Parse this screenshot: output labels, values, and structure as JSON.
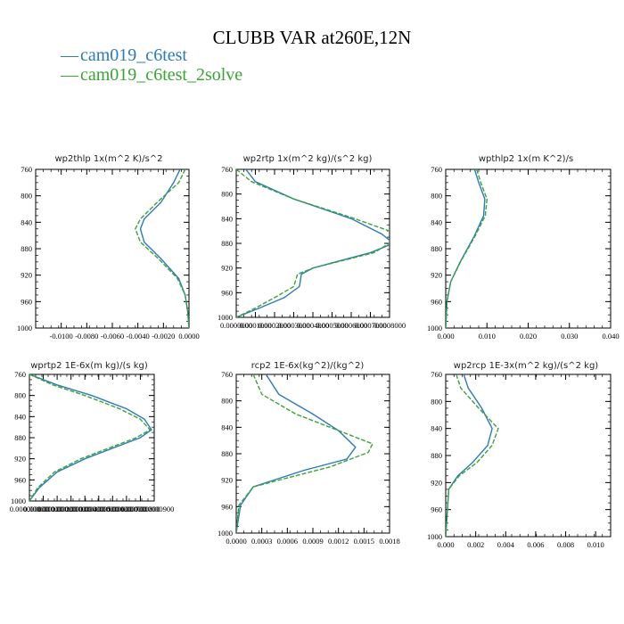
{
  "colors": {
    "series_1": "#2b7bba",
    "series_2": "#3aa435",
    "axis": "#000000"
  },
  "title": "CLUBB VAR at260E,12N",
  "legend": [
    {
      "symbol": "—",
      "label": "cam019_c6test",
      "color": "#2b7bba",
      "style": "solid"
    },
    {
      "symbol": "—",
      "label": "cam019_c6test_2solve",
      "color": "#3aa435",
      "style": "dashed"
    }
  ],
  "chart_data": [
    {
      "type": "line",
      "title": "wp2thlp  1x(m^2 K)/s^2",
      "xlim": [
        -0.012,
        0.0
      ],
      "ylim": [
        760,
        1000
      ],
      "y_inverted": true,
      "xticks": [
        -0.01,
        -0.008,
        -0.006,
        -0.004,
        -0.002,
        0.0
      ],
      "xtick_labels": [
        "-0.0100",
        "-0.0080",
        "-0.0060",
        "-0.0040",
        "-0.0020",
        "0.0000"
      ],
      "yticks": [
        760,
        800,
        840,
        880,
        920,
        960,
        1000
      ],
      "ytick_labels": [
        "760",
        "800",
        "840",
        "880",
        "920",
        "960",
        "1000"
      ],
      "series": [
        {
          "name": "cam019_c6test",
          "style": "solid",
          "points": [
            [
              -0.0007,
              760
            ],
            [
              -0.0012,
              780
            ],
            [
              -0.0022,
              810
            ],
            [
              -0.0035,
              835
            ],
            [
              -0.0038,
              850
            ],
            [
              -0.0035,
              870
            ],
            [
              -0.0022,
              895
            ],
            [
              -0.0008,
              925
            ],
            [
              -0.0003,
              950
            ],
            [
              -0.0001,
              975
            ],
            [
              0.0,
              1000
            ]
          ]
        },
        {
          "name": "cam019_c6test_2solve",
          "style": "dashed",
          "points": [
            [
              -0.0003,
              760
            ],
            [
              -0.0008,
              780
            ],
            [
              -0.0025,
              810
            ],
            [
              -0.0038,
              835
            ],
            [
              -0.0042,
              850
            ],
            [
              -0.0038,
              870
            ],
            [
              -0.0024,
              895
            ],
            [
              -0.0009,
              925
            ],
            [
              -0.0003,
              950
            ],
            [
              -0.0001,
              975
            ],
            [
              0.0,
              1000
            ]
          ]
        }
      ]
    },
    {
      "type": "line",
      "title": "wp2rtp  1x(m^2 kg)/(s^2 kg)",
      "xlim": [
        0.0,
        0.0008
      ],
      "ylim": [
        760,
        1000
      ],
      "y_inverted": true,
      "xticks": [
        0.0,
        0.0001,
        0.0002,
        0.0003,
        0.0004,
        0.0005,
        0.0006,
        0.0007,
        0.0008
      ],
      "xtick_labels": [
        "0.0000000",
        "0.0001000",
        "0.0002000",
        "0.0003000",
        "0.0004000",
        "0.0005000",
        "0.0006000",
        "0.0007000",
        "0.0008000"
      ],
      "yticks": [
        760,
        800,
        840,
        880,
        920,
        960,
        1000
      ],
      "ytick_labels": [
        "760",
        "800",
        "840",
        "880",
        "920",
        "960",
        "1000"
      ],
      "series": [
        {
          "name": "cam019_c6test",
          "style": "solid",
          "points": [
            [
              5e-05,
              760
            ],
            [
              0.0001,
              780
            ],
            [
              0.0003,
              808
            ],
            [
              0.0006,
              840
            ],
            [
              0.00076,
              865
            ],
            [
              0.00082,
              880
            ],
            [
              0.0007,
              895
            ],
            [
              0.0004,
              920
            ],
            [
              0.00034,
              930
            ],
            [
              0.00033,
              950
            ],
            [
              0.00025,
              968
            ],
            [
              0.00012,
              985
            ],
            [
              0.0,
              1000
            ]
          ]
        },
        {
          "name": "cam019_c6test_2solve",
          "style": "dashed",
          "points": [
            [
              0.0,
              760
            ],
            [
              8e-05,
              780
            ],
            [
              0.0003,
              808
            ],
            [
              0.0006,
              838
            ],
            [
              0.0008,
              860
            ],
            [
              0.00085,
              870
            ],
            [
              0.00072,
              895
            ],
            [
              0.0004,
              920
            ],
            [
              0.00032,
              930
            ],
            [
              0.0003,
              950
            ],
            [
              0.0002,
              968
            ],
            [
              0.0001,
              985
            ],
            [
              0.0,
              1000
            ]
          ]
        }
      ]
    },
    {
      "type": "line",
      "title": "wpthlp2  1x(m K^2)/s",
      "xlim": [
        0.0,
        0.04
      ],
      "ylim": [
        760,
        1000
      ],
      "y_inverted": true,
      "xticks": [
        0.0,
        0.01,
        0.02,
        0.03,
        0.04
      ],
      "xtick_labels": [
        "0.000",
        "0.010",
        "0.020",
        "0.030",
        "0.040"
      ],
      "yticks": [
        760,
        800,
        840,
        880,
        920,
        960,
        1000
      ],
      "ytick_labels": [
        "760",
        "800",
        "840",
        "880",
        "920",
        "960",
        "1000"
      ],
      "series": [
        {
          "name": "cam019_c6test",
          "style": "solid",
          "points": [
            [
              0.007,
              760
            ],
            [
              0.008,
              780
            ],
            [
              0.0095,
              805
            ],
            [
              0.0092,
              830
            ],
            [
              0.007,
              860
            ],
            [
              0.0035,
              900
            ],
            [
              0.0012,
              930
            ],
            [
              0.0003,
              960
            ],
            [
              0.0,
              1000
            ]
          ]
        },
        {
          "name": "cam019_c6test_2solve",
          "style": "dashed",
          "points": [
            [
              0.0075,
              760
            ],
            [
              0.0085,
              780
            ],
            [
              0.01,
              805
            ],
            [
              0.0096,
              830
            ],
            [
              0.0072,
              860
            ],
            [
              0.0036,
              900
            ],
            [
              0.0012,
              930
            ],
            [
              0.0003,
              960
            ],
            [
              0.0,
              1000
            ]
          ]
        }
      ]
    },
    {
      "type": "line",
      "title": "wprtp2  1E-6x(m kg)/(s kg)",
      "xlim": [
        0.0,
        9e-07
      ],
      "ylim": [
        760,
        1000
      ],
      "y_inverted": true,
      "xticks": [
        0.0,
        1e-07,
        2e-07,
        3e-07,
        4e-07,
        5e-07,
        6e-07,
        7e-07,
        8e-07,
        9e-07
      ],
      "xtick_labels": [
        "0.000000000",
        "0.000000100",
        "0.000000200",
        "0.000000300",
        "0.000000400",
        "0.000000500",
        "0.000000600",
        "0.000000700",
        "0.000000800",
        "0.000000900"
      ],
      "yticks": [
        760,
        800,
        840,
        880,
        920,
        960,
        1000
      ],
      "ytick_labels": [
        "760",
        "800",
        "840",
        "880",
        "920",
        "960",
        "1000"
      ],
      "series": [
        {
          "name": "cam019_c6test",
          "style": "solid",
          "points": [
            [
              0.0,
              760
            ],
            [
              2e-07,
              780
            ],
            [
              4.5e-07,
              800
            ],
            [
              7e-07,
              825
            ],
            [
              8.3e-07,
              845
            ],
            [
              8.8e-07,
              865
            ],
            [
              8e-07,
              880
            ],
            [
              6e-07,
              900
            ],
            [
              4e-07,
              920
            ],
            [
              2e-07,
              945
            ],
            [
              7e-08,
              975
            ],
            [
              0.0,
              1000
            ]
          ]
        },
        {
          "name": "cam019_c6test_2solve",
          "style": "dashed",
          "points": [
            [
              0.0,
              760
            ],
            [
              1.7e-07,
              780
            ],
            [
              4e-07,
              800
            ],
            [
              6.5e-07,
              825
            ],
            [
              8e-07,
              845
            ],
            [
              8.7e-07,
              865
            ],
            [
              7.7e-07,
              880
            ],
            [
              5.7e-07,
              900
            ],
            [
              3.7e-07,
              920
            ],
            [
              1.8e-07,
              945
            ],
            [
              6e-08,
              975
            ],
            [
              0.0,
              1000
            ]
          ]
        }
      ]
    },
    {
      "type": "line",
      "title": "rcp2  1E-6x(kg^2)/(kg^2)",
      "xlim": [
        0.0,
        0.0018
      ],
      "ylim": [
        760,
        1000
      ],
      "y_inverted": true,
      "xticks": [
        0.0,
        0.0003,
        0.0006,
        0.0009,
        0.0012,
        0.0015,
        0.0018
      ],
      "xtick_labels": [
        "0.0000",
        "0.0003",
        "0.0006",
        "0.0009",
        "0.0012",
        "0.0015",
        "0.0018"
      ],
      "yticks": [
        760,
        800,
        840,
        880,
        920,
        960,
        1000
      ],
      "ytick_labels": [
        "760",
        "800",
        "840",
        "880",
        "920",
        "960",
        "1000"
      ],
      "series": [
        {
          "name": "cam019_c6test",
          "style": "solid",
          "points": [
            [
              0.00035,
              760
            ],
            [
              0.0005,
              790
            ],
            [
              0.0009,
              820
            ],
            [
              0.0012,
              845
            ],
            [
              0.0014,
              870
            ],
            [
              0.0013,
              888
            ],
            [
              0.0008,
              905
            ],
            [
              0.0002,
              930
            ],
            [
              5e-05,
              958
            ],
            [
              0.0,
              1000
            ]
          ]
        },
        {
          "name": "cam019_c6test_2solve",
          "style": "dashed",
          "points": [
            [
              0.0002,
              760
            ],
            [
              0.0003,
              790
            ],
            [
              0.0007,
              820
            ],
            [
              0.0012,
              845
            ],
            [
              0.0016,
              865
            ],
            [
              0.00155,
              878
            ],
            [
              0.0011,
              900
            ],
            [
              0.0002,
              930
            ],
            [
              3e-05,
              958
            ],
            [
              0.0,
              1000
            ]
          ]
        }
      ]
    },
    {
      "type": "line",
      "title": "wp2rcp  1E-3x(m^2 kg)/(s^2 kg)",
      "xlim": [
        0.0,
        0.011
      ],
      "ylim": [
        760,
        1000
      ],
      "y_inverted": true,
      "xticks": [
        0.0,
        0.002,
        0.004,
        0.006,
        0.008,
        0.01
      ],
      "xtick_labels": [
        "0.000",
        "0.002",
        "0.004",
        "0.006",
        "0.008",
        "0.010"
      ],
      "yticks": [
        760,
        800,
        840,
        880,
        920,
        960,
        1000
      ],
      "ytick_labels": [
        "760",
        "800",
        "840",
        "880",
        "920",
        "960",
        "1000"
      ],
      "series": [
        {
          "name": "cam019_c6test",
          "style": "solid",
          "points": [
            [
              0.0012,
              760
            ],
            [
              0.0015,
              780
            ],
            [
              0.0024,
              810
            ],
            [
              0.0031,
              840
            ],
            [
              0.0028,
              865
            ],
            [
              0.0018,
              890
            ],
            [
              0.0008,
              910
            ],
            [
              0.0002,
              930
            ],
            [
              0.0,
              1000
            ]
          ]
        },
        {
          "name": "cam019_c6test_2solve",
          "style": "dashed",
          "points": [
            [
              0.0007,
              760
            ],
            [
              0.001,
              780
            ],
            [
              0.0022,
              810
            ],
            [
              0.0035,
              840
            ],
            [
              0.0031,
              865
            ],
            [
              0.0021,
              890
            ],
            [
              0.0009,
              910
            ],
            [
              0.0002,
              930
            ],
            [
              0.0,
              1000
            ]
          ]
        }
      ]
    }
  ]
}
